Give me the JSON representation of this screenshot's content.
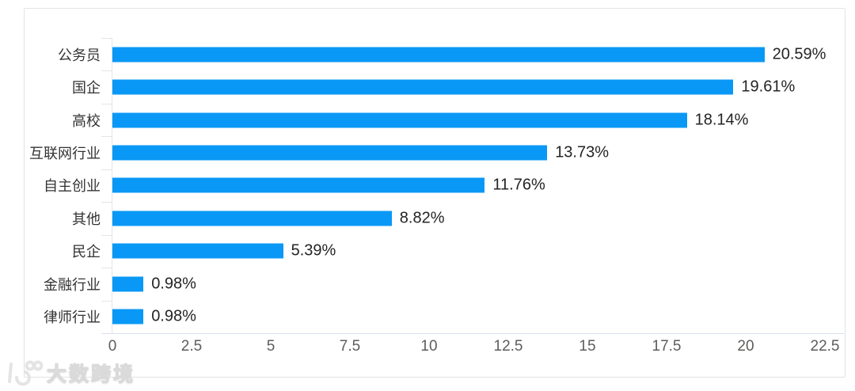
{
  "chart_data": {
    "type": "bar",
    "orientation": "horizontal",
    "title": "",
    "xlabel": "",
    "ylabel": "",
    "categories": [
      "公务员",
      "国企",
      "高校",
      "互联网行业",
      "自主创业",
      "其他",
      "民企",
      "金融行业",
      "律师行业"
    ],
    "values": [
      20.59,
      19.61,
      18.14,
      13.73,
      11.76,
      8.82,
      5.39,
      0.98,
      0.98
    ],
    "value_labels": [
      "20.59%",
      "19.61%",
      "18.14%",
      "13.73%",
      "11.76%",
      "8.82%",
      "5.39%",
      "0.98%",
      "0.98%"
    ],
    "x_tick_values": [
      0,
      2.5,
      5,
      7.5,
      10,
      12.5,
      15,
      17.5,
      20,
      22.5
    ],
    "x_tick_labels": [
      "0",
      "2.5",
      "5",
      "7.5",
      "10",
      "12.5",
      "15",
      "17.5",
      "20",
      "22.5"
    ],
    "xlim": [
      0,
      22.5
    ],
    "grid": false,
    "legend": "none",
    "bar_color": "#0a98f6"
  },
  "colors": {
    "bar": "#0a98f6",
    "category_label": "#333333",
    "value_label": "#252423",
    "tick_label": "#5f5d5b",
    "x_axis_line": "#d9e0f0",
    "y_axis_line": "#e4e4e4",
    "card_border": "#e3e3e8",
    "background": "#ffffff"
  },
  "watermark": {
    "text": "大数跨境"
  }
}
